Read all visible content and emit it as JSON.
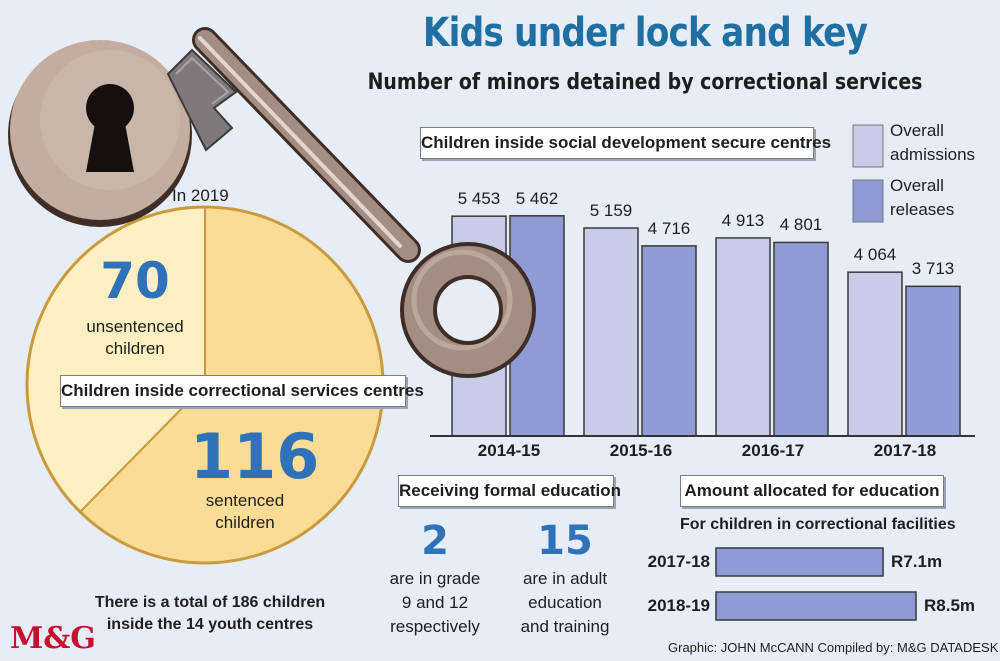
{
  "title": "Kids under lock and key",
  "subtitle": "Number of minors detained by correctional services",
  "pie": {
    "year_label": "In 2019",
    "box_label": "Children inside correctional services centres",
    "unsentenced": {
      "value": "70",
      "line1": "unsentenced",
      "line2": "children"
    },
    "sentenced": {
      "value": "116",
      "line1": "sentenced",
      "line2": "children"
    },
    "total_line1": "There is a total of 186 children",
    "total_line2": "inside the 14 youth centres"
  },
  "bar": {
    "box_label": "Children inside social development secure centres",
    "legend": [
      {
        "line1": "Overall",
        "line2": "admissions"
      },
      {
        "line1": "Overall",
        "line2": "releases"
      }
    ]
  },
  "education": {
    "box_label": "Receiving formal education",
    "stat1": {
      "value": "2",
      "line1": "are in grade",
      "line2": "9 and 12",
      "line3": "respectively"
    },
    "stat2": {
      "value": "15",
      "line1": "are in adult",
      "line2": "education",
      "line3": "and training"
    }
  },
  "allocation": {
    "box_label": "Amount allocated for education",
    "caption": "For children in correctional facilities"
  },
  "credit": "Graphic: JOHN McCANN  Compiled by: M&G DATADESK",
  "logo": "M&G",
  "colors": {
    "admissions": "#c8cce8",
    "releases": "#8e9bd4",
    "pie_light": "#fcefc2",
    "pie_dark": "#fbdc96",
    "key": "#a48d82",
    "number_blue": "#2f72b8"
  },
  "chart_data": [
    {
      "type": "bar",
      "title": "Children inside social development secure centres",
      "categories": [
        "2014-15",
        "2015-16",
        "2016-17",
        "2017-18"
      ],
      "series": [
        {
          "name": "Overall admissions",
          "values": [
            5453,
            5159,
            4913,
            4064
          ],
          "labels": [
            "5 453",
            "5 159",
            "4 913",
            "4 064"
          ]
        },
        {
          "name": "Overall releases",
          "values": [
            5462,
            4716,
            4801,
            3713
          ],
          "labels": [
            "5 462",
            "4 716",
            "4 801",
            "3 713"
          ]
        }
      ],
      "ylim": [
        0,
        6000
      ],
      "grid": false,
      "legend": "top-right"
    },
    {
      "type": "pie",
      "title": "Children inside correctional services centres",
      "slices": [
        {
          "name": "unsentenced children",
          "value": 70
        },
        {
          "name": "sentenced children",
          "value": 116
        }
      ]
    },
    {
      "type": "bar",
      "orientation": "horizontal",
      "title": "Amount allocated for education",
      "categories": [
        "2017-18",
        "2018-19"
      ],
      "values": [
        7.1,
        8.5
      ],
      "value_labels": [
        "R7.1m",
        "R8.5m"
      ],
      "unit": "R million"
    }
  ]
}
